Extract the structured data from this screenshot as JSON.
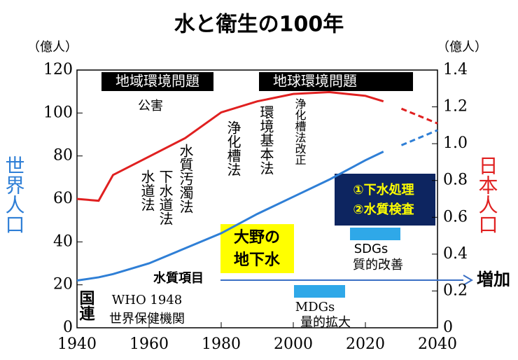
{
  "chart_data": {
    "type": "line",
    "title": "水と衛生の100年",
    "y_unit": "（億人）",
    "y2_unit": "（億人）",
    "ylabel": "世界人口",
    "y2label": "日本人口",
    "xlim": [
      1940,
      2040
    ],
    "xticks": [
      1940,
      1960,
      1980,
      2000,
      2020,
      2040
    ],
    "ylim": [
      0,
      120
    ],
    "yticks": [
      0,
      20,
      40,
      60,
      80,
      100,
      120
    ],
    "y2lim": [
      0,
      1.4
    ],
    "y2ticks": [
      0,
      0.2,
      0.4,
      0.6,
      0.8,
      {
        "value": 1,
        "label": "1.0"
      },
      1.2,
      1.4
    ],
    "x": [
      1940,
      1946,
      1950,
      1960,
      1970,
      1980,
      1990,
      2000,
      2010,
      2020,
      2025,
      2030,
      2040
    ],
    "series": [
      {
        "color": "#2f7fd6",
        "style": "solid",
        "values": [
          22,
          23.5,
          25,
          30,
          37,
          44,
          53,
          61,
          69,
          78,
          82,
          null,
          null
        ]
      },
      {
        "color": "#2f7fd6",
        "style": "dashed",
        "values": [
          null,
          null,
          null,
          null,
          null,
          null,
          null,
          null,
          null,
          null,
          null,
          85,
          92
        ]
      },
      {
        "color": "#e02020",
        "style": "solid",
        "axis": "y2",
        "values": [
          0.7,
          0.69,
          0.83,
          0.93,
          1.03,
          1.17,
          1.23,
          1.27,
          1.28,
          1.26,
          1.23,
          null,
          null
        ]
      },
      {
        "color": "#e02020",
        "style": "dashed",
        "axis": "y2",
        "values": [
          null,
          null,
          null,
          null,
          null,
          null,
          null,
          null,
          null,
          null,
          null,
          1.19,
          1.11
        ]
      }
    ],
    "annotations": [
      "地域環境問題",
      "公害",
      "地球環境問題",
      "浄化槽法",
      "環境基本法",
      "浄化槽法改正",
      "水質汚濁法",
      "下水道法",
      "水道法",
      "①下水処理",
      "②水質検査",
      "SDGs",
      "質的改善",
      "大野の",
      "地下水",
      "水質項目",
      "増加",
      "MDGs",
      "量的拡大",
      "国連",
      "WHO 1948",
      "世界保健機関"
    ]
  }
}
